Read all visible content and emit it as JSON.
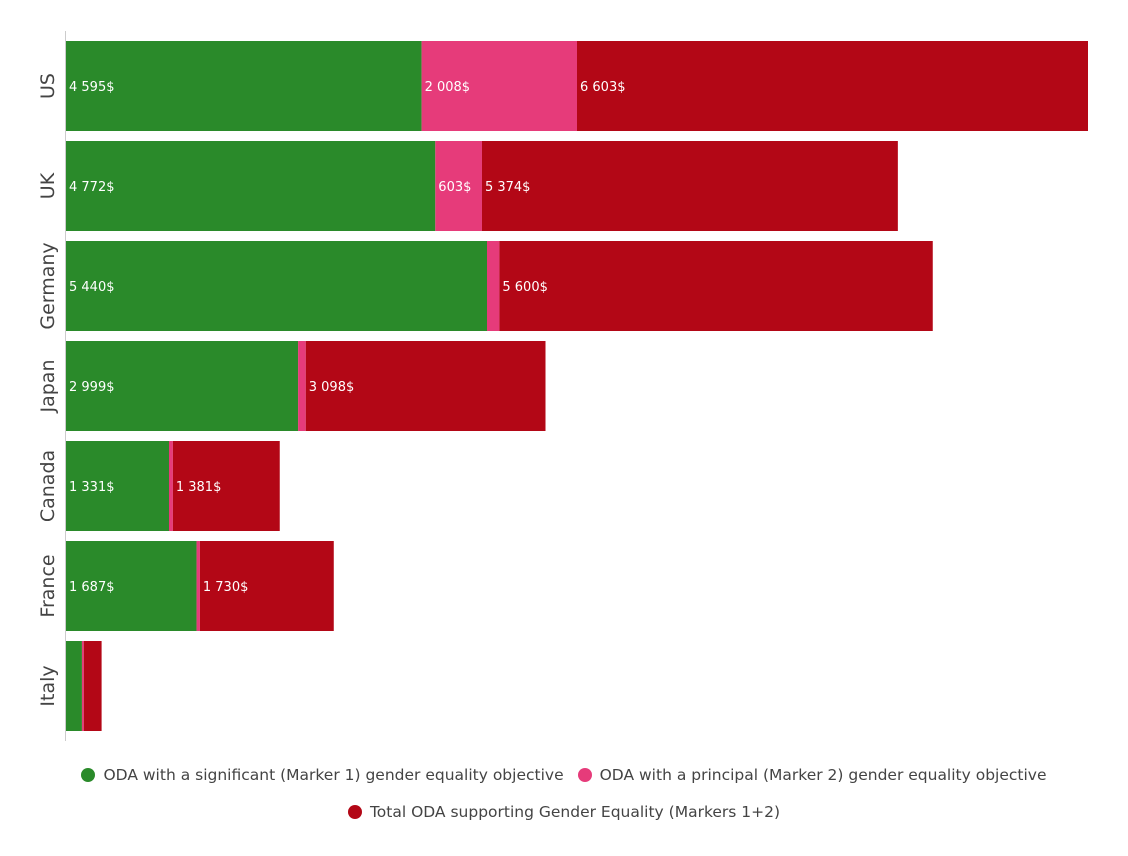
{
  "chart_data": {
    "type": "bar",
    "orientation": "horizontal",
    "stacked": true,
    "title": "",
    "xlabel": "",
    "ylabel": "",
    "categories": [
      "US",
      "UK",
      "Germany",
      "Japan",
      "Canada",
      "France",
      "Italy"
    ],
    "series": [
      {
        "name": "ODA with a significant (Marker 1) gender equality objective",
        "color": "#2a8a2a",
        "values": [
          4595,
          4772,
          5440,
          2999,
          1331,
          1687,
          206
        ],
        "labels": [
          "4 595$",
          "4 772$",
          "5 440$",
          "2 999$",
          "1 331$",
          "1 687$",
          ""
        ]
      },
      {
        "name": "ODA with a principal (Marker 2) gender equality objective",
        "color": "#e63b7a",
        "values": [
          2008,
          603,
          160,
          99,
          50,
          43,
          24
        ],
        "labels": [
          "2 008$",
          "603$",
          "",
          "",
          "",
          "",
          ""
        ]
      },
      {
        "name": "Total ODA supporting Gender Equality (Markers 1+2)",
        "color": "#b30716",
        "values": [
          6603,
          5374,
          5600,
          3098,
          1381,
          1730,
          230
        ],
        "labels": [
          "6 603$",
          "5 374$",
          "5 600$",
          "3 098$",
          "1 381$",
          "1 730$",
          ""
        ]
      }
    ],
    "grid": false,
    "legend": "bottom"
  }
}
